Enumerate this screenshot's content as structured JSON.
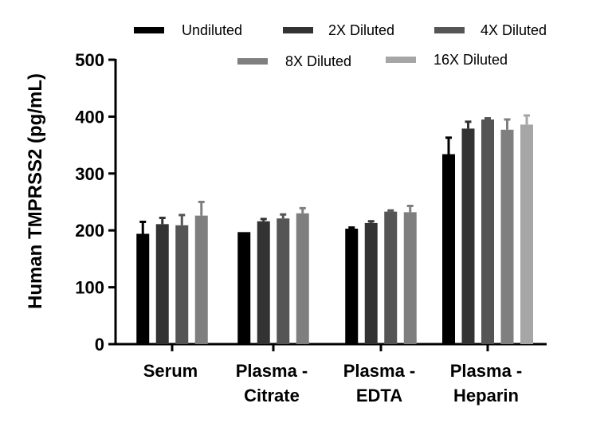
{
  "chart_data": {
    "type": "bar",
    "title": "",
    "xlabel": "",
    "ylabel": "Human TMPRSS2 (pg/mL)",
    "ylim": [
      0,
      500
    ],
    "yticks": [
      0,
      100,
      200,
      300,
      400,
      500
    ],
    "grid": false,
    "legend_placement": "top",
    "categories": [
      [
        "Serum"
      ],
      [
        "Plasma -",
        "Citrate"
      ],
      [
        "Plasma -",
        "EDTA"
      ],
      [
        "Plasma -",
        "Heparin"
      ]
    ],
    "series": [
      {
        "name": "Undiluted",
        "color": "#000000",
        "values": [
          194,
          197,
          203,
          334
        ],
        "errors": [
          21,
          0,
          2,
          29
        ]
      },
      {
        "name": "2X Diluted",
        "color": "#333333",
        "values": [
          211,
          216,
          213,
          379
        ],
        "errors": [
          11,
          4,
          3,
          12
        ]
      },
      {
        "name": "4X Diluted",
        "color": "#555555",
        "values": [
          209,
          221,
          233,
          395
        ],
        "errors": [
          18,
          7,
          2,
          2
        ]
      },
      {
        "name": "8X Diluted",
        "color": "#7f7f7f",
        "values": [
          226,
          230,
          232,
          377
        ],
        "errors": [
          24,
          9,
          11,
          18
        ]
      },
      {
        "name": "16X Diluted",
        "color": "#a6a6a6",
        "values": [
          null,
          null,
          null,
          386
        ],
        "errors": [
          null,
          null,
          null,
          16
        ]
      }
    ]
  }
}
